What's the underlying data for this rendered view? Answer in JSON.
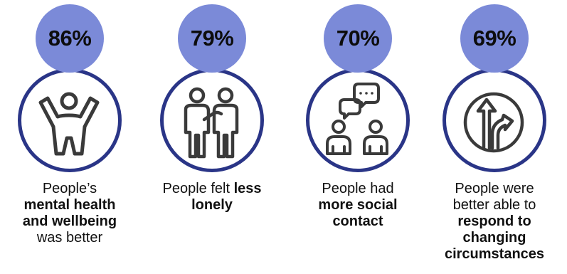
{
  "stats": [
    {
      "value": "86%",
      "icon": "person-arms-raised-icon",
      "caption": {
        "line1": "People’s",
        "bold1": "mental health",
        "bold2": "and wellbeing",
        "line4": "was better"
      }
    },
    {
      "value": "79%",
      "icon": "two-people-icon",
      "caption": {
        "pre": "People felt ",
        "bold1": "less",
        "bold2": "lonely"
      }
    },
    {
      "value": "70%",
      "icon": "people-conversation-icon",
      "caption": {
        "line1": "People had",
        "bold1": "more social",
        "bold2": "contact"
      }
    },
    {
      "value": "69%",
      "icon": "direction-arrows-icon",
      "caption": {
        "line1": "People were",
        "line2": "better able to",
        "bold1": "respond to",
        "bold2": "changing",
        "bold3": "circumstances"
      }
    }
  ],
  "colors": {
    "ring": "#2a3587",
    "badge": "#7b8ad8",
    "icon_stroke": "#3a3a3a"
  }
}
